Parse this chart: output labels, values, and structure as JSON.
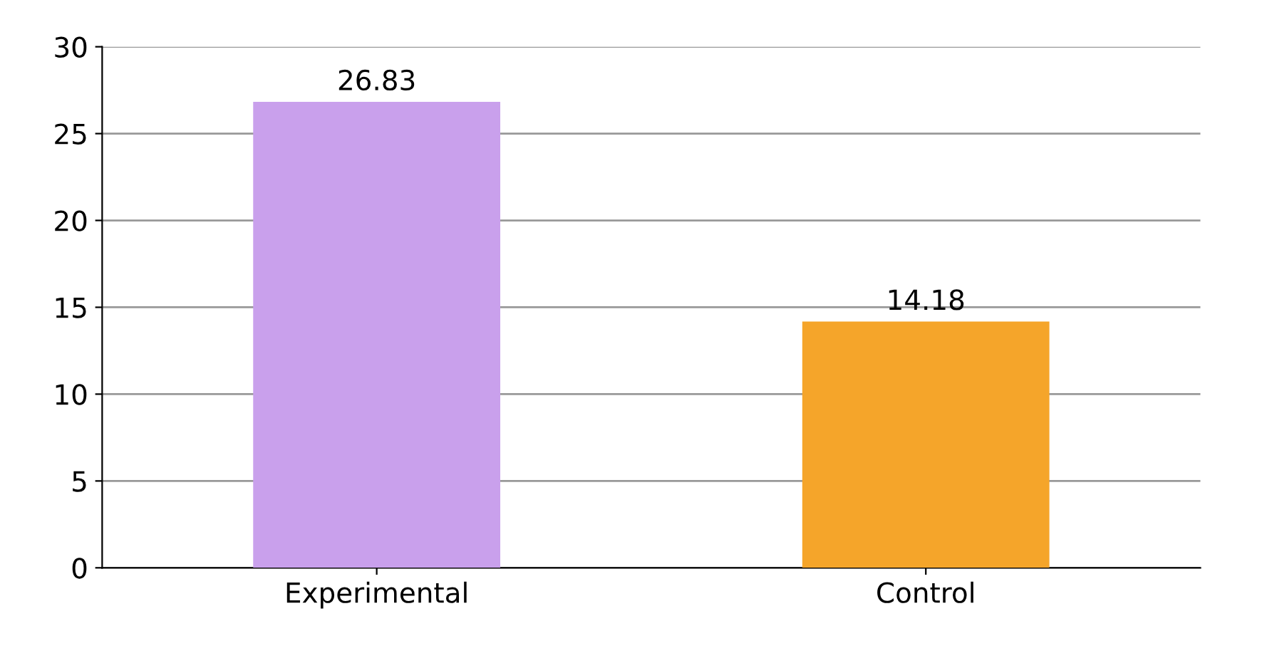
{
  "chart_data": {
    "type": "bar",
    "categories": [
      "Experimental",
      "Control"
    ],
    "values": [
      26.83,
      14.18
    ],
    "colors": [
      "#c9a0ec",
      "#f5a52a"
    ],
    "ylim": [
      0,
      30
    ],
    "yticks": [
      0,
      5,
      10,
      15,
      20,
      25,
      30
    ],
    "grid": "y",
    "data_labels": true
  }
}
